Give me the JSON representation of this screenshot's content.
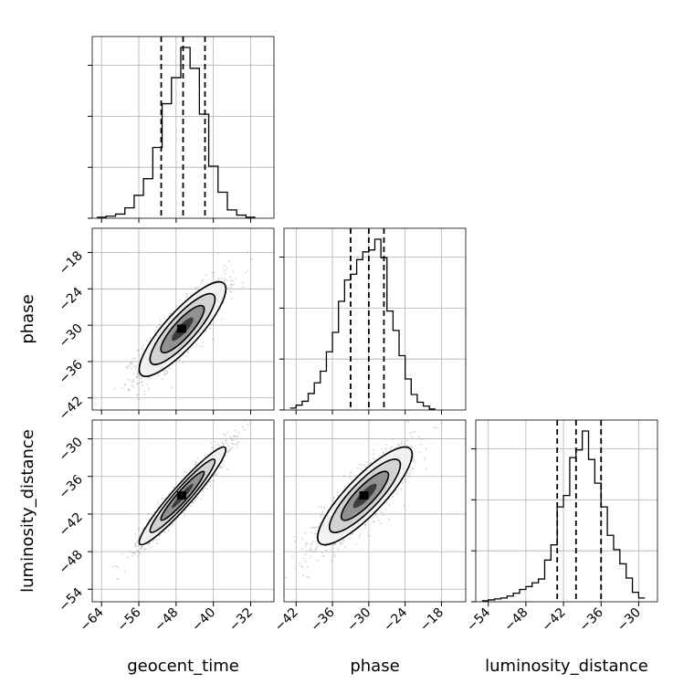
{
  "chart_data": {
    "type": "corner",
    "parameters": [
      "geocent_time",
      "phase",
      "luminosity_distance"
    ],
    "axis_labels": {
      "x": [
        "geocent_time",
        "phase",
        "luminosity_distance"
      ],
      "y": [
        "",
        "phase",
        "luminosity_distance"
      ]
    },
    "ranges": {
      "geocent_time": [
        -66,
        -27
      ],
      "phase": [
        -44,
        -14
      ],
      "luminosity_distance": [
        -56,
        -27
      ]
    },
    "ticks": {
      "geocent_time": [
        -64,
        -56,
        -48,
        -40,
        -32
      ],
      "phase": [
        -42,
        -36,
        -30,
        -24,
        -18
      ],
      "luminosity_distance": [
        -54,
        -48,
        -42,
        -36,
        -30
      ]
    },
    "tick_labels": {
      "geocent_time": [
        "−64",
        "−56",
        "−48",
        "−40",
        "−32"
      ],
      "phase": [
        "−42",
        "−36",
        "−30",
        "−24",
        "−18"
      ],
      "luminosity_distance": [
        "−54",
        "−48",
        "−42",
        "−36",
        "−30"
      ]
    },
    "quantiles": {
      "geocent_time": [
        -51.2,
        -46.5,
        -41.8
      ],
      "phase": [
        -33.0,
        -30.0,
        -27.5
      ],
      "luminosity_distance": [
        -43.0,
        -40.0,
        -36.0
      ]
    },
    "histograms": {
      "geocent_time": {
        "edges": [
          -65,
          -63,
          -61,
          -59,
          -57,
          -55,
          -53,
          -51,
          -49,
          -47,
          -45,
          -43,
          -41,
          -39,
          -37,
          -35,
          -33,
          -31
        ],
        "counts": [
          1,
          2,
          4,
          10,
          22,
          38,
          68,
          110,
          135,
          164,
          144,
          100,
          50,
          25,
          8,
          3,
          1
        ]
      },
      "phase": {
        "edges": [
          -43,
          -42,
          -41,
          -40,
          -39,
          -38,
          -37,
          -36,
          -35,
          -34,
          -33,
          -32,
          -31,
          -30,
          -29,
          -28,
          -27,
          -26,
          -25,
          -24,
          -23,
          -22,
          -21,
          -20,
          -19
        ],
        "counts": [
          2,
          5,
          9,
          17,
          28,
          40,
          60,
          80,
          112,
          134,
          140,
          155,
          163,
          165,
          176,
          157,
          102,
          82,
          56,
          32,
          16,
          8,
          4,
          1
        ]
      },
      "luminosity_distance": {
        "edges": [
          -55,
          -54,
          -53,
          -52,
          -51,
          -50,
          -49,
          -48,
          -47,
          -46,
          -45,
          -44,
          -43,
          -42,
          -41,
          -40,
          -39,
          -38,
          -37,
          -36,
          -35,
          -34,
          -33,
          -32,
          -31,
          -30,
          -29
        ],
        "counts": [
          1,
          2,
          3,
          4,
          6,
          9,
          13,
          16,
          20,
          24,
          44,
          60,
          100,
          112,
          152,
          160,
          180,
          150,
          125,
          100,
          70,
          55,
          40,
          25,
          10,
          4
        ]
      }
    },
    "pairs": [
      {
        "x": "geocent_time",
        "y": "phase",
        "correlation": 0.85
      },
      {
        "x": "geocent_time",
        "y": "luminosity_distance",
        "correlation": 0.95
      },
      {
        "x": "phase",
        "y": "luminosity_distance",
        "correlation": 0.85
      }
    ],
    "contour_levels_sigma": [
      0.5,
      1.0,
      1.5,
      2.0
    ],
    "colors": {
      "histogram": "#000000",
      "quantile_line": "#000000",
      "points": "#7f7f7f",
      "grid": "#b0b0b0"
    }
  }
}
